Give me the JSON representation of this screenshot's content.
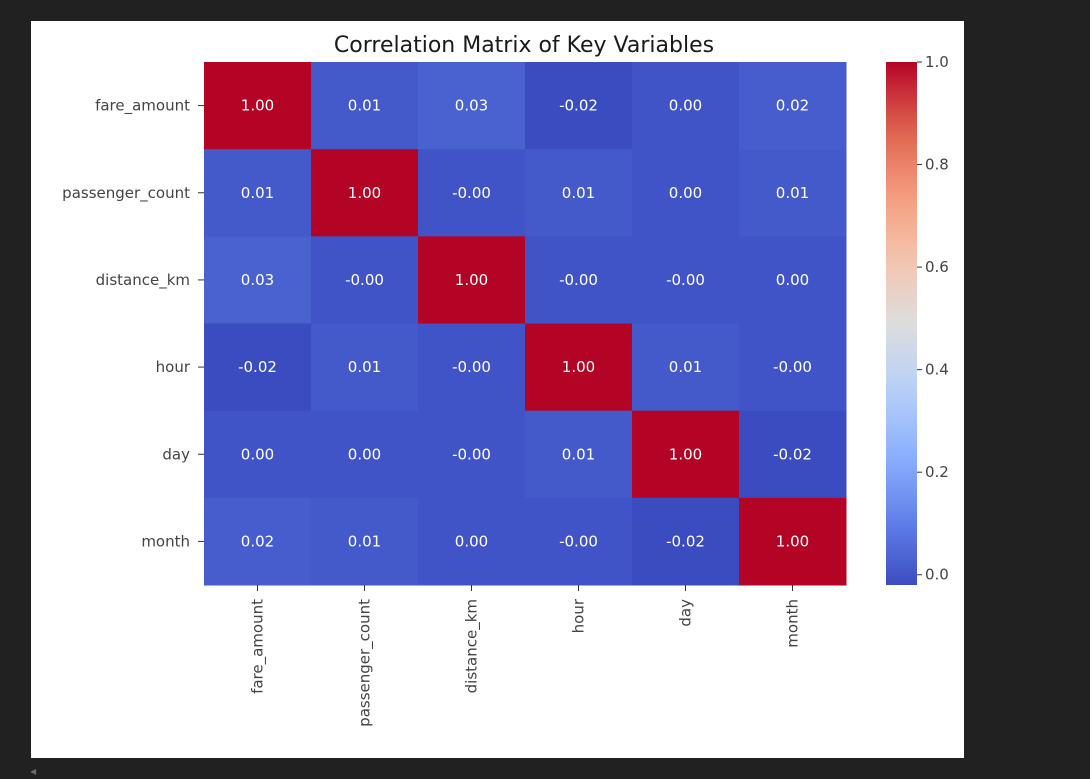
{
  "output_cell": {
    "scroll_arrow_glyph": "◀"
  },
  "chart_data": {
    "type": "heatmap",
    "title": "Correlation Matrix of Key Variables",
    "xlabel": "",
    "ylabel": "",
    "row_labels": [
      "fare_amount",
      "passenger_count",
      "distance_km",
      "hour",
      "day",
      "month"
    ],
    "col_labels": [
      "fare_amount",
      "passenger_count",
      "distance_km",
      "hour",
      "day",
      "month"
    ],
    "values": [
      [
        1.0,
        0.01,
        0.03,
        -0.02,
        0.0,
        0.02
      ],
      [
        0.01,
        1.0,
        -0.0,
        0.01,
        0.0,
        0.01
      ],
      [
        0.03,
        -0.0,
        1.0,
        -0.0,
        -0.0,
        0.0
      ],
      [
        -0.02,
        0.01,
        -0.0,
        1.0,
        0.01,
        -0.0
      ],
      [
        0.0,
        0.0,
        -0.0,
        0.01,
        1.0,
        -0.02
      ],
      [
        0.02,
        0.01,
        0.0,
        -0.0,
        -0.02,
        1.0
      ]
    ],
    "value_format": "0.00",
    "colormap": "coolwarm",
    "vmin": -0.02,
    "vmax": 1.0,
    "colorbar": {
      "ticks": [
        0.0,
        0.2,
        0.4,
        0.6,
        0.8,
        1.0
      ],
      "tick_labels": [
        "0.0",
        "0.2",
        "0.4",
        "0.6",
        "0.8",
        "1.0"
      ]
    },
    "grid": false,
    "legend": "colorbar-right"
  }
}
